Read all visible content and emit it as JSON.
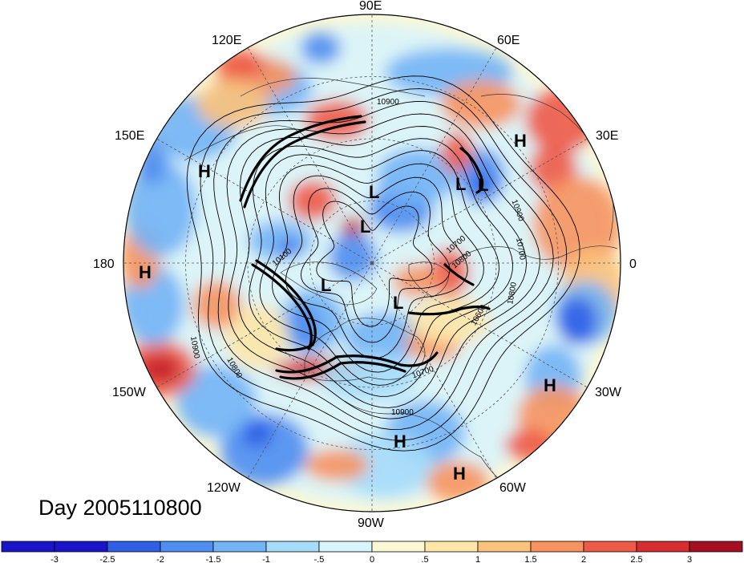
{
  "title": "Day 2005110800",
  "longitude_labels": [
    "90E",
    "60E",
    "30E",
    "0",
    "30W",
    "60W",
    "90W",
    "120W",
    "150W",
    "180",
    "150E",
    "120E"
  ],
  "pressure_centers": [
    {
      "type": "H"
    },
    {
      "type": "H"
    },
    {
      "type": "H"
    },
    {
      "type": "H"
    },
    {
      "type": "H"
    },
    {
      "type": "H"
    },
    {
      "type": "L"
    },
    {
      "type": "L"
    },
    {
      "type": "L"
    },
    {
      "type": "L"
    },
    {
      "type": "L"
    },
    {
      "type": "L"
    }
  ],
  "contour_labels": [
    "10900",
    "10900",
    "10700",
    "10800",
    "10600",
    "10700",
    "10900",
    "10800",
    "10900",
    "10100",
    "10800",
    "10700"
  ],
  "colorbar": {
    "tick_labels": [
      "-3",
      "-2.5",
      "-2",
      "-1.5",
      "-1",
      "-.5",
      "0",
      ".5",
      "1",
      "1.5",
      "2",
      "2.5",
      "3"
    ],
    "colors": [
      "#1a14c8",
      "#2f5fe6",
      "#4f8ef0",
      "#73b4f5",
      "#a6dcfa",
      "#d8f4fc",
      "#fdf8d4",
      "#fde6a8",
      "#fbc27c",
      "#f7935e",
      "#ee5a47",
      "#d62d30",
      "#a50f22"
    ]
  }
}
